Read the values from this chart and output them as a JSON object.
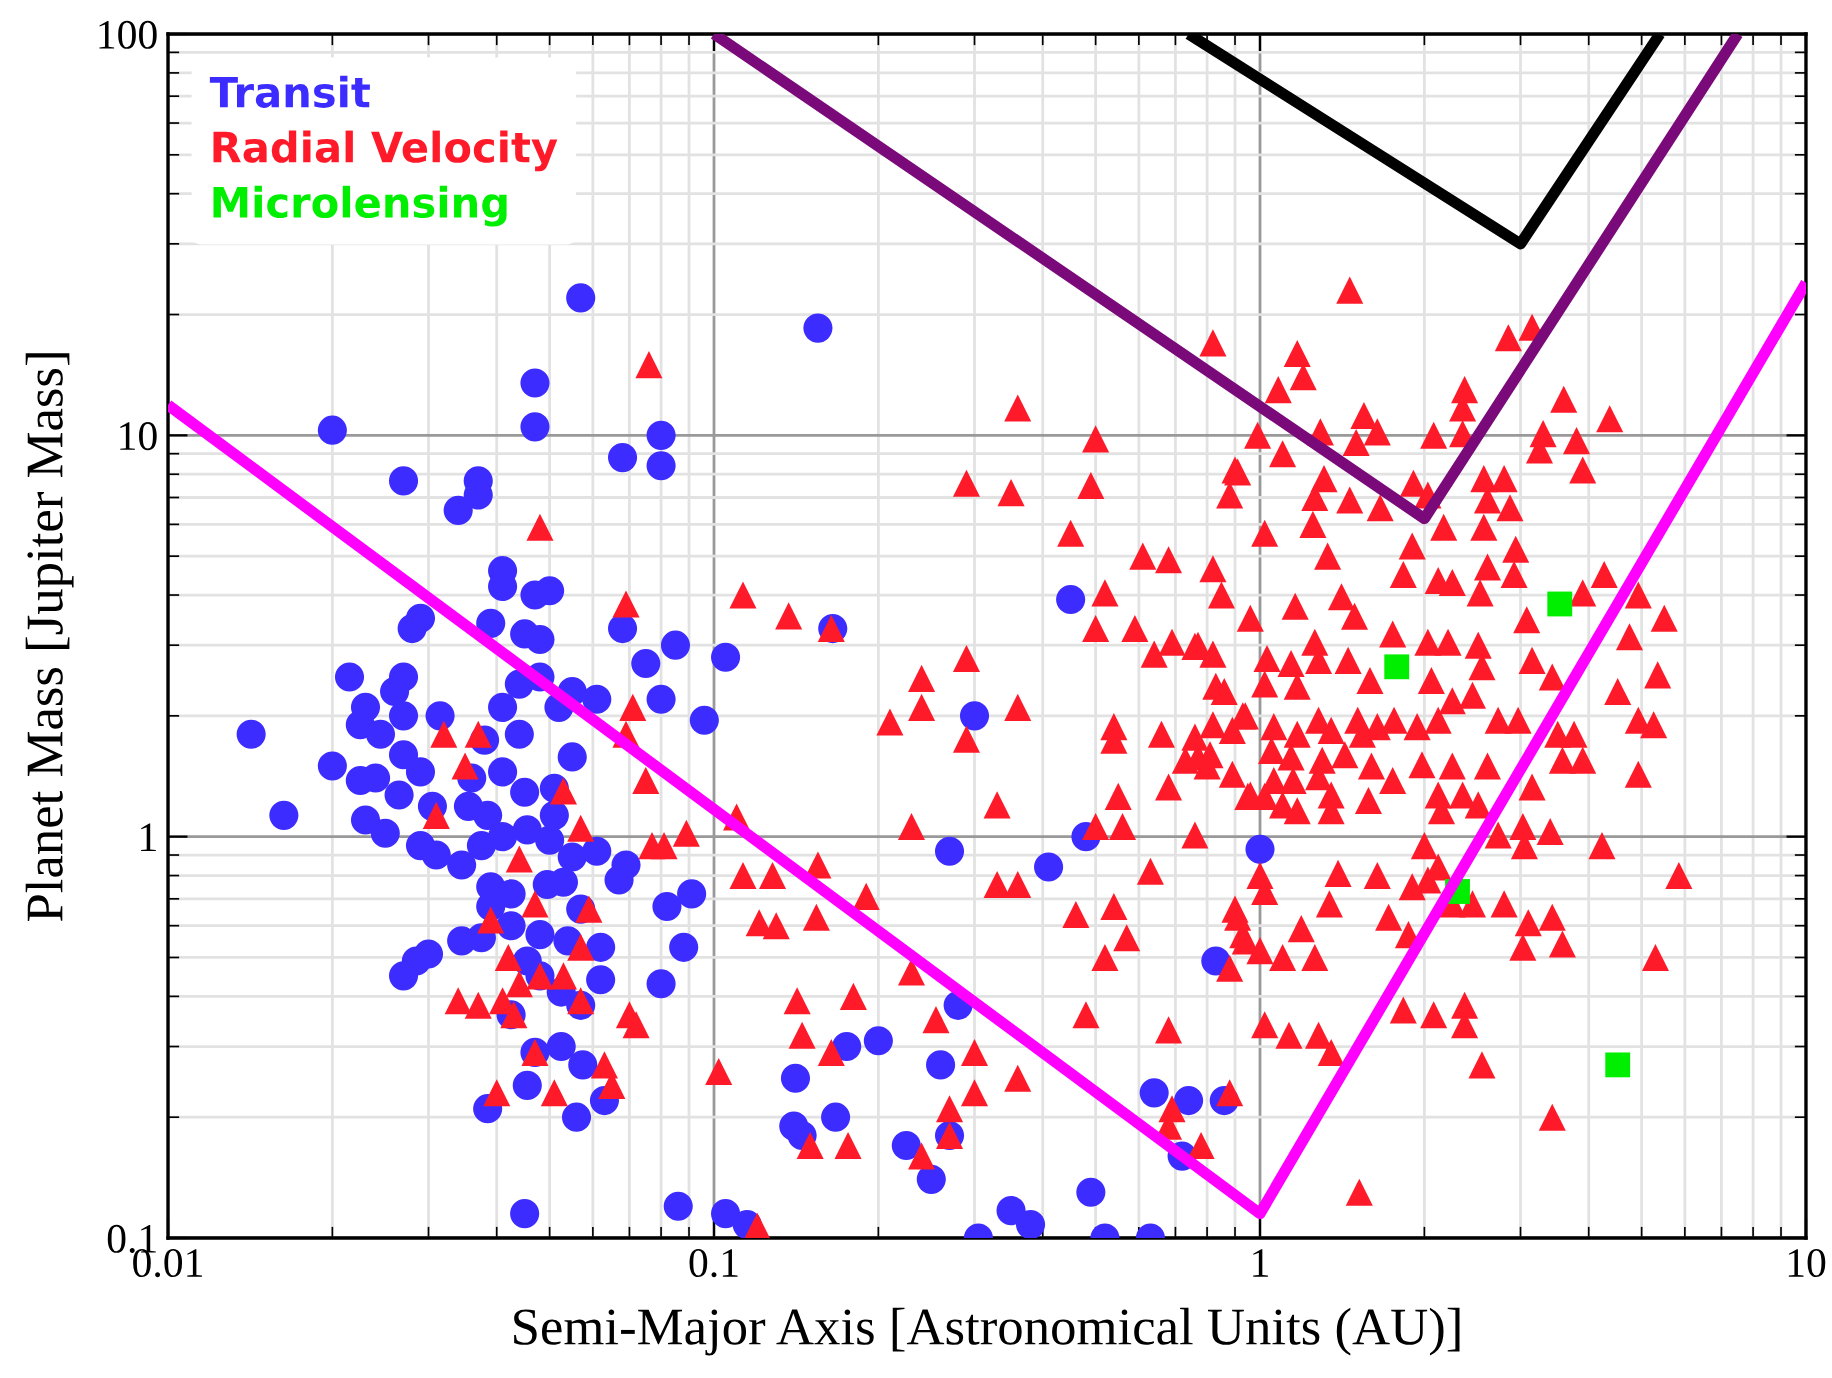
{
  "chart_data": {
    "type": "scatter",
    "xlabel": "Semi-Major Axis [Astronomical Units (AU)]",
    "ylabel": "Planet Mass [Jupiter Mass]",
    "log": "xy",
    "xlim": [
      0.01,
      10
    ],
    "ylim": [
      0.1,
      100
    ],
    "xticks": [
      0.01,
      0.1,
      1,
      10
    ],
    "yticks": [
      0.1,
      1,
      10,
      100
    ],
    "grid": true,
    "legend": "top left",
    "series": [
      {
        "name": "Transit",
        "color": "#3c2cff",
        "marker": "circle",
        "x": [
          0.057,
          0.155,
          0.02,
          0.047,
          0.047,
          0.08,
          0.08,
          0.068,
          0.027,
          0.037,
          0.037,
          0.034,
          0.041,
          0.041,
          0.047,
          0.05,
          0.028,
          0.029,
          0.039,
          0.045,
          0.048,
          0.068,
          0.075,
          0.085,
          0.105,
          0.0215,
          0.027,
          0.026,
          0.023,
          0.0225,
          0.0245,
          0.027,
          0.0315,
          0.041,
          0.044,
          0.048,
          0.052,
          0.055,
          0.061,
          0.08,
          0.096,
          0.0142,
          0.02,
          0.0163,
          0.0225,
          0.024,
          0.027,
          0.029,
          0.0265,
          0.023,
          0.025,
          0.0305,
          0.036,
          0.041,
          0.044,
          0.045,
          0.051,
          0.055,
          0.038,
          0.029,
          0.031,
          0.0345,
          0.0375,
          0.0355,
          0.0385,
          0.041,
          0.0455,
          0.05,
          0.051,
          0.055,
          0.061,
          0.069,
          0.067,
          0.039,
          0.0425,
          0.0495,
          0.053,
          0.039,
          0.0425,
          0.048,
          0.054,
          0.057,
          0.062,
          0.0345,
          0.0375,
          0.03,
          0.0285,
          0.027,
          0.082,
          0.091,
          0.088,
          0.0455,
          0.048,
          0.0525,
          0.057,
          0.062,
          0.08,
          0.0425,
          0.047,
          0.0525,
          0.0575,
          0.0455,
          0.0385,
          0.056,
          0.063,
          0.045,
          0.086,
          0.105,
          0.115,
          0.165,
          0.3,
          0.27,
          0.41,
          0.45,
          0.48,
          0.83,
          1.0,
          0.28,
          0.175,
          0.2,
          0.26,
          0.141,
          0.14,
          0.145,
          0.167,
          0.225,
          0.25,
          0.27,
          0.64,
          0.74,
          0.86,
          0.72,
          0.49,
          0.35,
          0.38,
          0.305,
          0.52,
          0.63
        ],
        "values": [
          22,
          18.5,
          10.3,
          13.5,
          10.5,
          10,
          8.4,
          8.8,
          7.7,
          7.7,
          7.1,
          6.5,
          4.6,
          4.2,
          4.0,
          4.1,
          3.3,
          3.5,
          3.4,
          3.2,
          3.1,
          3.3,
          2.7,
          3.0,
          2.8,
          2.5,
          2.5,
          2.3,
          2.1,
          1.9,
          1.8,
          2.0,
          2.0,
          2.1,
          2.4,
          2.5,
          2.1,
          2.3,
          2.2,
          2.2,
          1.95,
          1.8,
          1.5,
          1.13,
          1.38,
          1.4,
          1.6,
          1.45,
          1.27,
          1.1,
          1.02,
          1.19,
          1.4,
          1.45,
          1.8,
          1.29,
          1.32,
          1.58,
          1.74,
          0.95,
          0.9,
          0.85,
          0.95,
          1.19,
          1.13,
          1.0,
          1.04,
          0.98,
          1.13,
          0.89,
          0.92,
          0.85,
          0.78,
          0.75,
          0.72,
          0.76,
          0.77,
          0.67,
          0.6,
          0.57,
          0.55,
          0.66,
          0.53,
          0.55,
          0.56,
          0.51,
          0.49,
          0.45,
          0.67,
          0.72,
          0.53,
          0.49,
          0.45,
          0.41,
          0.38,
          0.44,
          0.43,
          0.36,
          0.29,
          0.3,
          0.27,
          0.24,
          0.21,
          0.2,
          0.22,
          0.115,
          0.12,
          0.115,
          0.108,
          3.3,
          2.0,
          0.92,
          0.84,
          3.9,
          1.0,
          0.49,
          0.93,
          0.38,
          0.3,
          0.31,
          0.27,
          0.25,
          0.19,
          0.18,
          0.2,
          0.17,
          0.14,
          0.18,
          0.23,
          0.22,
          0.22,
          0.16,
          0.13,
          0.117,
          0.108,
          0.1,
          0.1,
          0.1
        ]
      },
      {
        "name": "Radial Velocity",
        "color": "#ff1a2a",
        "marker": "triangle",
        "x": [
          0.076,
          0.048,
          0.069,
          0.113,
          0.071,
          0.069,
          0.032,
          0.037,
          0.035,
          0.053,
          0.031,
          0.057,
          0.075,
          0.089,
          0.077,
          0.081,
          0.044,
          0.047,
          0.059,
          0.039,
          0.057,
          0.042,
          0.044,
          0.048,
          0.053,
          0.034,
          0.037,
          0.041,
          0.043,
          0.057,
          0.07,
          0.072,
          0.047,
          0.063,
          0.065,
          0.051,
          0.04,
          0.102,
          0.113,
          0.121,
          0.11,
          0.82,
          0.36,
          0.5,
          0.29,
          0.35,
          0.49,
          0.45,
          0.9,
          0.88,
          0.61,
          0.68,
          0.82,
          0.85,
          0.52,
          0.5,
          0.59,
          0.69,
          0.64,
          0.76,
          0.82,
          0.83,
          0.137,
          0.164,
          0.29,
          0.24,
          0.24,
          0.36,
          0.21,
          0.29,
          0.54,
          0.54,
          0.66,
          0.76,
          0.82,
          0.94,
          0.73,
          0.8,
          0.89,
          0.68,
          0.95,
          0.55,
          0.33,
          0.23,
          0.5,
          0.56,
          0.76,
          0.128,
          0.155,
          0.33,
          0.36,
          0.63,
          0.19,
          0.13,
          0.154,
          0.46,
          0.54,
          0.57,
          0.52,
          0.88,
          0.9,
          0.94,
          0.23,
          0.142,
          0.18,
          0.145,
          0.164,
          0.255,
          0.3,
          0.48,
          0.36,
          0.3,
          0.27,
          0.27,
          0.15,
          0.176,
          0.24,
          0.68,
          0.69,
          0.68,
          0.78,
          0.88,
          0.12,
          1.46,
          1.17,
          1.2,
          1.08,
          2.85,
          3.15,
          2.37,
          2.35,
          3.6,
          4.37,
          1.55,
          1.64,
          0.99,
          1.1,
          1.29,
          1.5,
          2.08,
          2.35,
          3.3,
          3.8,
          3.25,
          3.9,
          0.91,
          1.31,
          1.26,
          1.46,
          1.66,
          1.91,
          2.03,
          2.57,
          2.8,
          2.61,
          2.87,
          1.02,
          1.25,
          1.33,
          1.9,
          2.17,
          2.57,
          2.94,
          1.83,
          2.12,
          2.25,
          2.61,
          2.92,
          2.53,
          1.16,
          1.41,
          1.49,
          0.96,
          3.9,
          4.27,
          4.93,
          5.5,
          3.08,
          4.75,
          1.75,
          2.03,
          2.21,
          1.26,
          1.03,
          1.14,
          1.28,
          1.45,
          1.59,
          2.51,
          2.55,
          3.15,
          3.43,
          5.35,
          4.52,
          0.77,
          0.86,
          1.02,
          1.17,
          2.06,
          2.25,
          2.45,
          2.73,
          2.97,
          4.93,
          5.26,
          3.51,
          3.76,
          3.9,
          3.58,
          4.93,
          0.93,
          1.06,
          1.17,
          1.28,
          1.35,
          1.51,
          1.64,
          1.76,
          1.94,
          2.12,
          1.54,
          0.89,
          0.77,
          0.81,
          1.05,
          1.14,
          1.3,
          1.43,
          1.6,
          1.75,
          1.06,
          1.15,
          1.28,
          1.35,
          0.96,
          1.02,
          1.1,
          1.17,
          1.35,
          1.58,
          1.98,
          2.25,
          2.61,
          2.12,
          2.35,
          2.51,
          3.15,
          2.15,
          2.73,
          3.03,
          3.4,
          3.05,
          4.23,
          5.85,
          1.39,
          1.64,
          2.0,
          2.12,
          1.9,
          1.0,
          1.02,
          1.34,
          1.72,
          2.03,
          2.25,
          2.45,
          2.8,
          3.1,
          3.43,
          3.58,
          3.03,
          0.91,
          0.93,
          1.0,
          1.19,
          1.1,
          1.26,
          1.87,
          5.3,
          1.83,
          2.08,
          2.37,
          2.37,
          1.02,
          1.13,
          1.28,
          1.35,
          2.55,
          3.43,
          1.52
        ],
        "values": [
          15,
          5.9,
          3.8,
          4.0,
          2.1,
          1.8,
          1.8,
          1.8,
          1.5,
          1.3,
          1.13,
          1.05,
          1.38,
          1.02,
          0.95,
          0.95,
          0.88,
          0.68,
          0.66,
          0.62,
          0.53,
          0.5,
          0.43,
          0.45,
          0.45,
          0.39,
          0.38,
          0.39,
          0.36,
          0.39,
          0.36,
          0.34,
          0.29,
          0.27,
          0.24,
          0.23,
          0.23,
          0.26,
          0.8,
          0.61,
          1.12,
          17,
          11.7,
          9.8,
          7.6,
          7.2,
          7.5,
          5.7,
          8.2,
          7.1,
          5.0,
          4.9,
          4.65,
          4.0,
          4.05,
          3.3,
          3.3,
          3.05,
          2.85,
          2.98,
          2.85,
          2.37,
          3.55,
          3.3,
          2.78,
          2.48,
          2.1,
          2.1,
          1.93,
          1.75,
          1.88,
          1.74,
          1.8,
          1.77,
          1.9,
          2.0,
          1.55,
          1.5,
          1.43,
          1.33,
          1.26,
          1.26,
          1.2,
          1.06,
          1.06,
          1.06,
          1.01,
          0.8,
          0.85,
          0.76,
          0.76,
          0.82,
          0.71,
          0.6,
          0.63,
          0.64,
          0.67,
          0.56,
          0.5,
          0.47,
          0.66,
          0.55,
          0.46,
          0.39,
          0.4,
          0.32,
          0.29,
          0.35,
          0.29,
          0.36,
          0.25,
          0.23,
          0.21,
          0.18,
          0.17,
          0.17,
          0.16,
          0.33,
          0.21,
          0.19,
          0.17,
          0.23,
          0.107,
          23,
          16,
          14,
          13,
          17.5,
          18.6,
          13,
          11.7,
          12.3,
          11,
          11.2,
          10.2,
          10,
          9.0,
          10.2,
          9.6,
          10,
          10.1,
          10.1,
          9.7,
          9.2,
          8.2,
          8.1,
          7.8,
          7.0,
          6.9,
          6.6,
          7.6,
          7.1,
          7.8,
          7.8,
          6.9,
          6.6,
          5.7,
          6.0,
          5.0,
          5.3,
          5.9,
          5.9,
          5.2,
          4.5,
          4.35,
          4.3,
          4.7,
          4.5,
          4.05,
          3.75,
          3.96,
          3.54,
          3.5,
          4.05,
          4.5,
          4.0,
          3.5,
          3.47,
          3.15,
          3.2,
          3.05,
          3.05,
          3.05,
          2.78,
          2.7,
          2.75,
          2.75,
          2.45,
          3.0,
          2.65,
          2.75,
          2.5,
          2.53,
          2.3,
          3.0,
          2.3,
          2.4,
          2.37,
          2.45,
          2.18,
          2.25,
          1.95,
          1.95,
          1.95,
          1.9,
          1.8,
          1.8,
          1.55,
          1.55,
          1.43,
          2.0,
          1.88,
          1.8,
          1.95,
          1.84,
          1.95,
          1.88,
          1.95,
          1.88,
          1.95,
          1.8,
          1.84,
          1.58,
          1.6,
          1.64,
          1.58,
          1.55,
          1.6,
          1.5,
          1.38,
          1.38,
          1.38,
          1.41,
          1.27,
          1.27,
          1.26,
          1.2,
          1.16,
          1.16,
          1.23,
          1.51,
          1.5,
          1.5,
          1.27,
          1.27,
          1.2,
          1.33,
          1.16,
          1.01,
          1.06,
          1.03,
          0.95,
          0.95,
          0.8,
          0.81,
          0.8,
          0.95,
          0.84,
          0.75,
          0.8,
          0.73,
          0.68,
          0.63,
          0.78,
          0.68,
          0.68,
          0.68,
          0.61,
          0.63,
          0.54,
          0.53,
          0.63,
          0.57,
          0.52,
          0.59,
          0.5,
          0.5,
          0.57,
          0.5,
          0.37,
          0.36,
          0.38,
          0.34,
          0.34,
          0.32,
          0.32,
          0.29,
          0.27,
          0.2,
          0.13
        ]
      },
      {
        "name": "Microlensing",
        "color": "#00ee00",
        "marker": "square",
        "x": [
          1.78,
          3.54,
          2.3,
          4.52
        ],
        "values": [
          2.65,
          3.8,
          0.73,
          0.27
        ]
      },
      {
        "type": "line",
        "color": "#ff00ff",
        "x": [
          0.01,
          1,
          10
        ],
        "values": [
          11.9,
          0.115,
          24
        ]
      },
      {
        "type": "line",
        "color": "#7a0a7a",
        "x": [
          0.1,
          2.0,
          7.5
        ],
        "values": [
          100,
          6.2,
          100
        ]
      },
      {
        "type": "line",
        "color": "#000000",
        "x": [
          0.74,
          3.0,
          5.4
        ],
        "values": [
          100,
          30,
          100
        ]
      }
    ]
  }
}
